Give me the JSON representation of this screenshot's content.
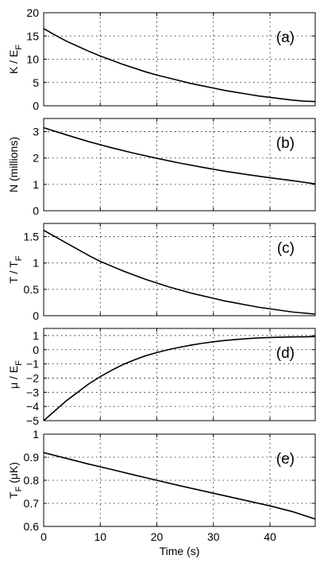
{
  "chart_data": [
    {
      "type": "line",
      "panel_label": "(a)",
      "ylabel_main": "K / E",
      "ylabel_sub": "F",
      "xlim": [
        0,
        48
      ],
      "ylim": [
        0,
        20
      ],
      "yticks": [
        0,
        5,
        10,
        15,
        20
      ],
      "ytick_labels": [
        "0",
        "5",
        "10",
        "15",
        "20"
      ],
      "grid": true,
      "series": [
        {
          "x": [
            0,
            2,
            4,
            6,
            8,
            10,
            12,
            14,
            16,
            18,
            20,
            22,
            24,
            26,
            28,
            30,
            32,
            34,
            36,
            38,
            40,
            42,
            44,
            46,
            48
          ],
          "y": [
            16.6,
            15.2,
            13.9,
            12.8,
            11.7,
            10.7,
            9.8,
            8.9,
            8.1,
            7.3,
            6.6,
            6.0,
            5.4,
            4.8,
            4.3,
            3.8,
            3.3,
            2.9,
            2.5,
            2.1,
            1.8,
            1.5,
            1.2,
            1.0,
            0.9
          ]
        }
      ]
    },
    {
      "type": "line",
      "panel_label": "(b)",
      "ylabel_main": "N (millions)",
      "ylabel_sub": "",
      "xlim": [
        0,
        48
      ],
      "ylim": [
        0,
        3.5
      ],
      "yticks": [
        0,
        1,
        2,
        3
      ],
      "ytick_labels": [
        "0",
        "1",
        "2",
        "3"
      ],
      "grid": true,
      "series": [
        {
          "x": [
            0,
            4,
            8,
            12,
            16,
            20,
            24,
            28,
            32,
            36,
            40,
            44,
            48
          ],
          "y": [
            3.15,
            2.88,
            2.62,
            2.39,
            2.18,
            1.99,
            1.81,
            1.65,
            1.5,
            1.37,
            1.25,
            1.14,
            1.02
          ]
        }
      ]
    },
    {
      "type": "line",
      "panel_label": "(c)",
      "ylabel_main": "T / T",
      "ylabel_sub": "F",
      "xlim": [
        0,
        48
      ],
      "ylim": [
        0,
        1.75
      ],
      "yticks": [
        0,
        0.5,
        1,
        1.5
      ],
      "ytick_labels": [
        "0",
        "0.5",
        "1",
        "1.5"
      ],
      "grid": true,
      "series": [
        {
          "x": [
            0,
            2,
            4,
            6,
            8,
            10,
            12,
            14,
            16,
            18,
            20,
            22,
            24,
            26,
            28,
            30,
            32,
            34,
            36,
            38,
            40,
            42,
            44,
            46,
            48
          ],
          "y": [
            1.62,
            1.5,
            1.38,
            1.26,
            1.14,
            1.03,
            0.94,
            0.85,
            0.77,
            0.69,
            0.62,
            0.55,
            0.49,
            0.43,
            0.38,
            0.33,
            0.28,
            0.24,
            0.2,
            0.16,
            0.13,
            0.1,
            0.07,
            0.05,
            0.03
          ]
        }
      ]
    },
    {
      "type": "line",
      "panel_label": "(d)",
      "ylabel_main": "μ / E",
      "ylabel_sub": "F",
      "xlim": [
        0,
        48
      ],
      "ylim": [
        -5,
        1.5
      ],
      "yticks": [
        -5,
        -4,
        -3,
        -2,
        -1,
        0,
        1
      ],
      "ytick_labels": [
        "−5",
        "−4",
        "−3",
        "−2",
        "−1",
        "0",
        "1"
      ],
      "grid": true,
      "series": [
        {
          "x": [
            0,
            2,
            4,
            6,
            8,
            10,
            12,
            14,
            16,
            18,
            20,
            22,
            24,
            26,
            28,
            30,
            32,
            34,
            36,
            38,
            40,
            42,
            44,
            46,
            48
          ],
          "y": [
            -5.0,
            -4.3,
            -3.6,
            -3.0,
            -2.4,
            -1.9,
            -1.45,
            -1.05,
            -0.72,
            -0.43,
            -0.2,
            0.0,
            0.17,
            0.32,
            0.45,
            0.56,
            0.65,
            0.72,
            0.78,
            0.83,
            0.86,
            0.88,
            0.9,
            0.91,
            0.92
          ]
        }
      ]
    },
    {
      "type": "line",
      "panel_label": "(e)",
      "ylabel_main": "T",
      "ylabel_sub": "F",
      "ylabel_suffix": "(μK)",
      "xlabel": "Time (s)",
      "xlim": [
        0,
        48
      ],
      "ylim": [
        0.6,
        1.0
      ],
      "yticks": [
        0.6,
        0.7,
        0.8,
        0.9,
        1.0
      ],
      "ytick_labels": [
        "0.6",
        "0.7",
        "0.8",
        "0.9",
        "1"
      ],
      "xticks": [
        0,
        10,
        20,
        30,
        40
      ],
      "xtick_labels": [
        "0",
        "10",
        "20",
        "30",
        "40"
      ],
      "grid": true,
      "series": [
        {
          "x": [
            0,
            4,
            8,
            12,
            16,
            20,
            24,
            28,
            32,
            36,
            40,
            44,
            48
          ],
          "y": [
            0.92,
            0.895,
            0.87,
            0.847,
            0.823,
            0.8,
            0.777,
            0.755,
            0.733,
            0.711,
            0.689,
            0.664,
            0.632
          ]
        }
      ]
    }
  ]
}
